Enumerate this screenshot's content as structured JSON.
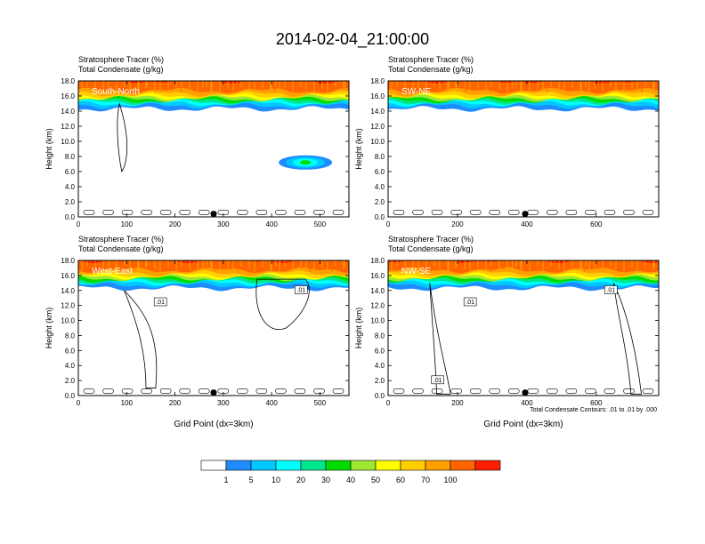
{
  "title": "2014-02-04_21:00:00",
  "colorbar": {
    "ticks": [
      "1",
      "5",
      "10",
      "20",
      "30",
      "40",
      "50",
      "60",
      "70",
      "100"
    ],
    "colors": [
      "#ffffff",
      "#1e8cff",
      "#00c8ff",
      "#00ffff",
      "#00e68c",
      "#00dc00",
      "#a0e632",
      "#ffff00",
      "#ffcd00",
      "#ffa000",
      "#ff6400",
      "#ff1e00"
    ]
  },
  "contour_note": "Total Condensate Contours: .01 to .01 by .000",
  "chart_data": [
    {
      "type": "heatmap",
      "panel": "South-North",
      "title_line1": "Stratosphere Tracer   (%)",
      "title_line2": "Total Condensate   (g/kg)",
      "ylabel": "Height (km)",
      "xlabel": "",
      "xlim": [
        0,
        560
      ],
      "ylim": [
        0,
        18
      ],
      "xticks": [
        "0",
        "100",
        "200",
        "300",
        "400",
        "500"
      ],
      "yticks": [
        "0.0",
        "2.0",
        "4.0",
        "6.0",
        "8.0",
        "10.0",
        "12.0",
        "14.0",
        "16.0",
        "18.0"
      ],
      "marker_x": 280,
      "contour_labels": []
    },
    {
      "type": "heatmap",
      "panel": "SW-NE",
      "title_line1": "Stratosphere Tracer   (%)",
      "title_line2": "Total Condensate   (g/kg)",
      "ylabel": "Height (km)",
      "xlabel": "",
      "xlim": [
        0,
        780
      ],
      "ylim": [
        0,
        18
      ],
      "xticks": [
        "0",
        "200",
        "400",
        "600"
      ],
      "yticks": [
        "0.0",
        "2.0",
        "4.0",
        "6.0",
        "8.0",
        "10.0",
        "12.0",
        "14.0",
        "16.0",
        "18.0"
      ],
      "marker_x": 395,
      "contour_labels": []
    },
    {
      "type": "heatmap",
      "panel": "West-East",
      "title_line1": "Stratosphere Tracer   (%)",
      "title_line2": "Total Condensate   (g/kg)",
      "ylabel": "Height (km)",
      "xlabel": "Grid Point (dx=3km)",
      "xlim": [
        0,
        560
      ],
      "ylim": [
        0,
        18
      ],
      "xticks": [
        "0",
        "100",
        "200",
        "300",
        "400",
        "500"
      ],
      "yticks": [
        "0.0",
        "2.0",
        "4.0",
        "6.0",
        "8.0",
        "10.0",
        "12.0",
        "14.0",
        "16.0",
        "18.0"
      ],
      "marker_x": 280,
      "contour_labels": [
        ".01",
        ".01"
      ]
    },
    {
      "type": "heatmap",
      "panel": "NW-SE",
      "title_line1": "Stratosphere Tracer   (%)",
      "title_line2": "Total Condensate   (g/kg)",
      "ylabel": "Height (km)",
      "xlabel": "Grid Point (dx=3km)",
      "xlim": [
        0,
        780
      ],
      "ylim": [
        0,
        18
      ],
      "xticks": [
        "0",
        "200",
        "400",
        "600"
      ],
      "yticks": [
        "0.0",
        "2.0",
        "4.0",
        "6.0",
        "8.0",
        "10.0",
        "12.0",
        "14.0",
        "16.0",
        "18.0"
      ],
      "marker_x": 395,
      "contour_labels": [
        ".01",
        ".01",
        ".01"
      ]
    }
  ]
}
